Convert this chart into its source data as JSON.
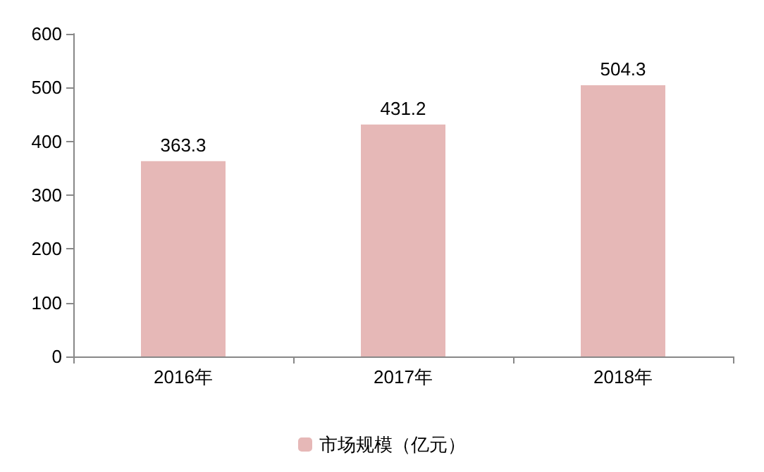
{
  "chart_data": {
    "type": "bar",
    "categories": [
      "2016年",
      "2017年",
      "2018年"
    ],
    "series": [
      {
        "name": "市场规模（亿元）",
        "color": "#e6b8b7",
        "values": [
          363.3,
          431.2,
          504.3
        ]
      }
    ],
    "ylim": [
      0,
      600
    ],
    "yticks": [
      0,
      100,
      200,
      300,
      400,
      500,
      600
    ],
    "grid": false,
    "legend": "bottom",
    "data_labels": true
  }
}
